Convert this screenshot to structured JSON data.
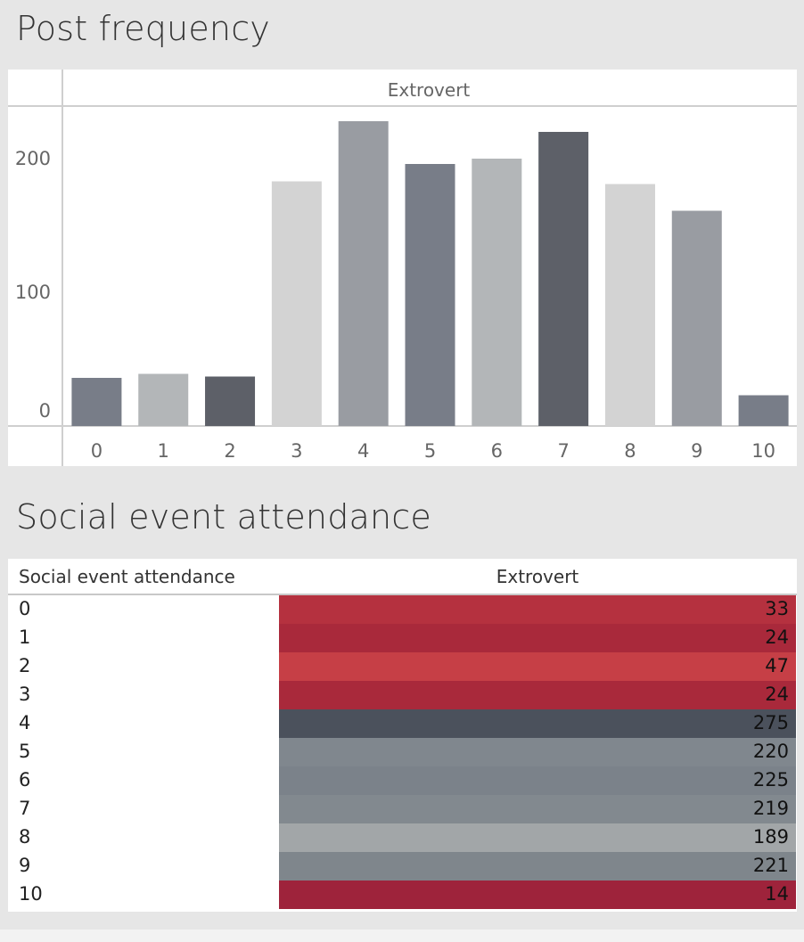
{
  "sections": {
    "post_frequency_title": "Post frequency",
    "social_event_title": "Social event attendance"
  },
  "chart_data": [
    {
      "type": "bar",
      "title": "Post frequency",
      "column_header": "Extrovert",
      "categories": [
        "0",
        "1",
        "2",
        "3",
        "4",
        "5",
        "6",
        "7",
        "8",
        "9",
        "10"
      ],
      "values": [
        36,
        39,
        37,
        183,
        228,
        196,
        200,
        220,
        181,
        161,
        23
      ],
      "colors": [
        "#787d88",
        "#b3b6b8",
        "#5d6068",
        "#d3d3d3",
        "#999ca2",
        "#787d88",
        "#b3b6b8",
        "#5d6068",
        "#d3d3d3",
        "#999ca2",
        "#787d88"
      ],
      "yticks": [
        0,
        100,
        200
      ],
      "ylim": [
        0,
        240
      ],
      "xlabel": "",
      "ylabel": "",
      "grid": false
    },
    {
      "type": "table",
      "title": "Social event attendance",
      "row_header": "Social event attendance",
      "column_header": "Extrovert",
      "rows": [
        {
          "label": "0",
          "value": "33",
          "color": "#b5313f"
        },
        {
          "label": "1",
          "value": "24",
          "color": "#a9293b"
        },
        {
          "label": "2",
          "value": "47",
          "color": "#c63f46"
        },
        {
          "label": "3",
          "value": "24",
          "color": "#a9293b"
        },
        {
          "label": "4",
          "value": "275",
          "color": "#4b515c"
        },
        {
          "label": "5",
          "value": "220",
          "color": "#80878e"
        },
        {
          "label": "6",
          "value": "225",
          "color": "#7b828a"
        },
        {
          "label": "7",
          "value": "219",
          "color": "#82898f"
        },
        {
          "label": "8",
          "value": "189",
          "color": "#a2a6a8"
        },
        {
          "label": "9",
          "value": "221",
          "color": "#7f868c"
        },
        {
          "label": "10",
          "value": "14",
          "color": "#9e233b"
        }
      ]
    }
  ]
}
